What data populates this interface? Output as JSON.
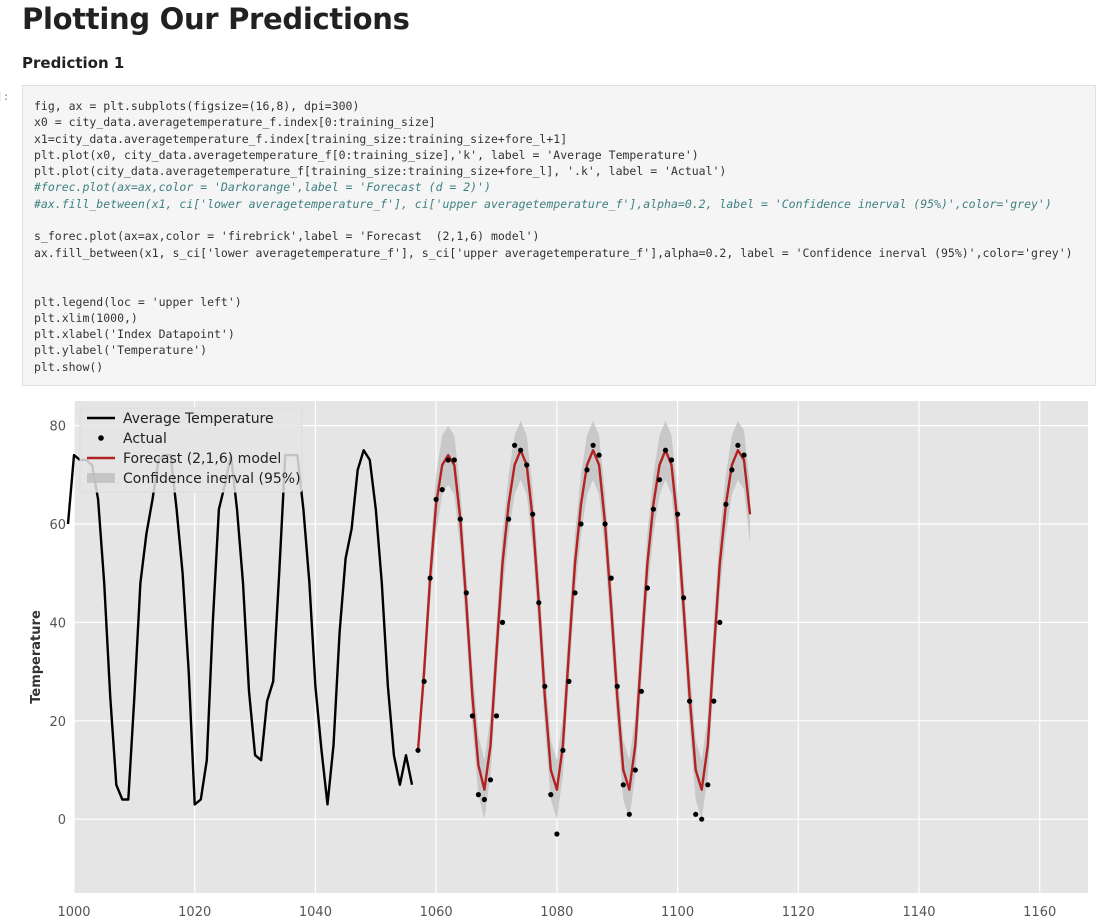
{
  "notebook": {
    "heading": "Plotting Our Predictions",
    "subheading": "Prediction 1",
    "prompt": "]:"
  },
  "code_cell": {
    "lines": [
      {
        "text": "fig, ax = plt.subplots(figsize=(16,8), dpi=300)",
        "kind": "code"
      },
      {
        "text": "x0 = city_data.averagetemperature_f.index[0:training_size]",
        "kind": "code"
      },
      {
        "text": "x1=city_data.averagetemperature_f.index[training_size:training_size+fore_l+1]",
        "kind": "code"
      },
      {
        "text": "plt.plot(x0, city_data.averagetemperature_f[0:training_size],'k', label = 'Average Temperature')",
        "kind": "code"
      },
      {
        "text": "plt.plot(city_data.averagetemperature_f[training_size:training_size+fore_l], '.k', label = 'Actual')",
        "kind": "code"
      },
      {
        "text": "#forec.plot(ax=ax,color = 'Darkorange',label = 'Forecast (d = 2)')",
        "kind": "comment"
      },
      {
        "text": "#ax.fill_between(x1, ci['lower averagetemperature_f'], ci['upper averagetemperature_f'],alpha=0.2, label = 'Confidence inerval (95%)',color='grey')",
        "kind": "comment"
      },
      {
        "text": "",
        "kind": "code"
      },
      {
        "text": "s_forec.plot(ax=ax,color = 'firebrick',label = 'Forecast  (2,1,6) model')",
        "kind": "code"
      },
      {
        "text": "ax.fill_between(x1, s_ci['lower averagetemperature_f'], s_ci['upper averagetemperature_f'],alpha=0.2, label = 'Confidence inerval (95%)',color='grey')",
        "kind": "code"
      },
      {
        "text": "",
        "kind": "code"
      },
      {
        "text": "",
        "kind": "code"
      },
      {
        "text": "plt.legend(loc = 'upper left')",
        "kind": "code"
      },
      {
        "text": "plt.xlim(1000,)",
        "kind": "code"
      },
      {
        "text": "plt.xlabel('Index Datapoint')",
        "kind": "code"
      },
      {
        "text": "plt.ylabel('Temperature')",
        "kind": "code"
      },
      {
        "text": "plt.show()",
        "kind": "code"
      }
    ]
  },
  "colors": {
    "plot_background": "#e5e5e5",
    "grid": "#ffffff",
    "average_line": "#000000",
    "actual_points": "#000000",
    "forecast_line": "#b22222",
    "confidence_band": "#bdbdbd",
    "tick_text": "#555555"
  },
  "chart_data": {
    "type": "line",
    "title": "",
    "xlabel": "",
    "ylabel": "Temperature",
    "xlim": [
      1000,
      1168
    ],
    "ylim": [
      -15,
      85
    ],
    "xticks": [
      1000,
      1020,
      1040,
      1060,
      1080,
      1100,
      1120,
      1140,
      1160
    ],
    "yticks": [
      0,
      20,
      40,
      60,
      80
    ],
    "grid": true,
    "legend_position": "upper-left",
    "legend": [
      "Average Temperature",
      "Actual",
      "Forecast  (2,1,6) model",
      "Confidence inerval (95%)"
    ],
    "series": [
      {
        "name": "Average Temperature",
        "kind": "line",
        "x": [
          999,
          1000,
          1001,
          1002,
          1003,
          1004,
          1005,
          1006,
          1007,
          1008,
          1009,
          1010,
          1011,
          1012,
          1013,
          1014,
          1015,
          1016,
          1017,
          1018,
          1019,
          1020,
          1021,
          1022,
          1023,
          1024,
          1025,
          1026,
          1027,
          1028,
          1029,
          1030,
          1031,
          1032,
          1033,
          1034,
          1035,
          1036,
          1037,
          1038,
          1039,
          1040,
          1041,
          1042,
          1043,
          1044,
          1045,
          1046,
          1047,
          1048,
          1049,
          1050,
          1051,
          1052,
          1053,
          1054,
          1055,
          1056
        ],
        "y": [
          60,
          74,
          73,
          73,
          72,
          65,
          48,
          25,
          7,
          4,
          4,
          25,
          48,
          58,
          65,
          73,
          74,
          74,
          63,
          50,
          30,
          3,
          4,
          12,
          40,
          63,
          68,
          74,
          63,
          48,
          26,
          13,
          12,
          24,
          28,
          50,
          74,
          74,
          74,
          63,
          48,
          27,
          14,
          3,
          15,
          38,
          53,
          59,
          71,
          75,
          73,
          63,
          48,
          27,
          13,
          7,
          13,
          7
        ]
      },
      {
        "name": "Actual",
        "kind": "scatter",
        "x": [
          1057,
          1058,
          1059,
          1060,
          1061,
          1062,
          1063,
          1064,
          1065,
          1066,
          1067,
          1068,
          1069,
          1070,
          1071,
          1072,
          1073,
          1074,
          1075,
          1076,
          1077,
          1078,
          1079,
          1080,
          1081,
          1082,
          1083,
          1084,
          1085,
          1086,
          1087,
          1088,
          1089,
          1090,
          1091,
          1092,
          1093,
          1094,
          1095,
          1096,
          1097,
          1098,
          1099,
          1100,
          1101,
          1102,
          1103,
          1104,
          1105,
          1106,
          1107,
          1108,
          1109,
          1110,
          1111
        ],
        "y": [
          14,
          28,
          49,
          65,
          67,
          73,
          73,
          61,
          46,
          21,
          5,
          4,
          8,
          21,
          40,
          61,
          76,
          75,
          72,
          62,
          44,
          27,
          5,
          -3,
          14,
          28,
          46,
          60,
          71,
          76,
          74,
          60,
          49,
          27,
          7,
          1,
          10,
          26,
          47,
          63,
          69,
          75,
          73,
          62,
          45,
          24,
          1,
          0,
          7,
          24,
          40,
          64,
          71,
          76,
          74
        ]
      },
      {
        "name": "Forecast  (2,1,6) model",
        "kind": "line",
        "x": [
          1057,
          1058,
          1059,
          1060,
          1061,
          1062,
          1063,
          1064,
          1065,
          1066,
          1067,
          1068,
          1069,
          1070,
          1071,
          1072,
          1073,
          1074,
          1075,
          1076,
          1077,
          1078,
          1079,
          1080,
          1081,
          1082,
          1083,
          1084,
          1085,
          1086,
          1087,
          1088,
          1089,
          1090,
          1091,
          1092,
          1093,
          1094,
          1095,
          1096,
          1097,
          1098,
          1099,
          1100,
          1101,
          1102,
          1103,
          1104,
          1105,
          1106,
          1107,
          1108,
          1109,
          1110,
          1111,
          1112
        ],
        "y": [
          14,
          30,
          49,
          64,
          72,
          74,
          72,
          61,
          44,
          25,
          11,
          6,
          15,
          34,
          52,
          64,
          72,
          75,
          72,
          61,
          44,
          25,
          10,
          6,
          15,
          34,
          52,
          64,
          72,
          75,
          72,
          60,
          43,
          25,
          10,
          6,
          15,
          34,
          52,
          64,
          72,
          75,
          72,
          60,
          43,
          25,
          10,
          6,
          15,
          34,
          52,
          64,
          72,
          75,
          73,
          62
        ]
      },
      {
        "name": "Confidence inerval (95%)",
        "kind": "band",
        "x": [
          1057,
          1058,
          1059,
          1060,
          1061,
          1062,
          1063,
          1064,
          1065,
          1066,
          1067,
          1068,
          1069,
          1070,
          1071,
          1072,
          1073,
          1074,
          1075,
          1076,
          1077,
          1078,
          1079,
          1080,
          1081,
          1082,
          1083,
          1084,
          1085,
          1086,
          1087,
          1088,
          1089,
          1090,
          1091,
          1092,
          1093,
          1094,
          1095,
          1096,
          1097,
          1098,
          1099,
          1100,
          1101,
          1102,
          1103,
          1104,
          1105,
          1106,
          1107,
          1108,
          1109,
          1110,
          1111,
          1112
        ],
        "lower": [
          12,
          26,
          44,
          58,
          66,
          68,
          66,
          55,
          38,
          19,
          5,
          0,
          9,
          28,
          46,
          58,
          66,
          69,
          66,
          55,
          38,
          19,
          4,
          0,
          9,
          28,
          46,
          58,
          66,
          69,
          66,
          54,
          37,
          19,
          4,
          0,
          9,
          28,
          46,
          58,
          66,
          69,
          66,
          54,
          37,
          19,
          4,
          0,
          9,
          28,
          46,
          58,
          66,
          69,
          67,
          56
        ],
        "upper": [
          16,
          34,
          54,
          70,
          78,
          80,
          78,
          67,
          50,
          31,
          17,
          12,
          21,
          40,
          58,
          70,
          78,
          81,
          78,
          67,
          50,
          31,
          16,
          12,
          21,
          40,
          58,
          70,
          78,
          81,
          78,
          66,
          49,
          31,
          16,
          12,
          21,
          40,
          58,
          70,
          78,
          81,
          78,
          66,
          49,
          31,
          16,
          12,
          21,
          40,
          58,
          70,
          78,
          81,
          79,
          68
        ]
      }
    ]
  }
}
